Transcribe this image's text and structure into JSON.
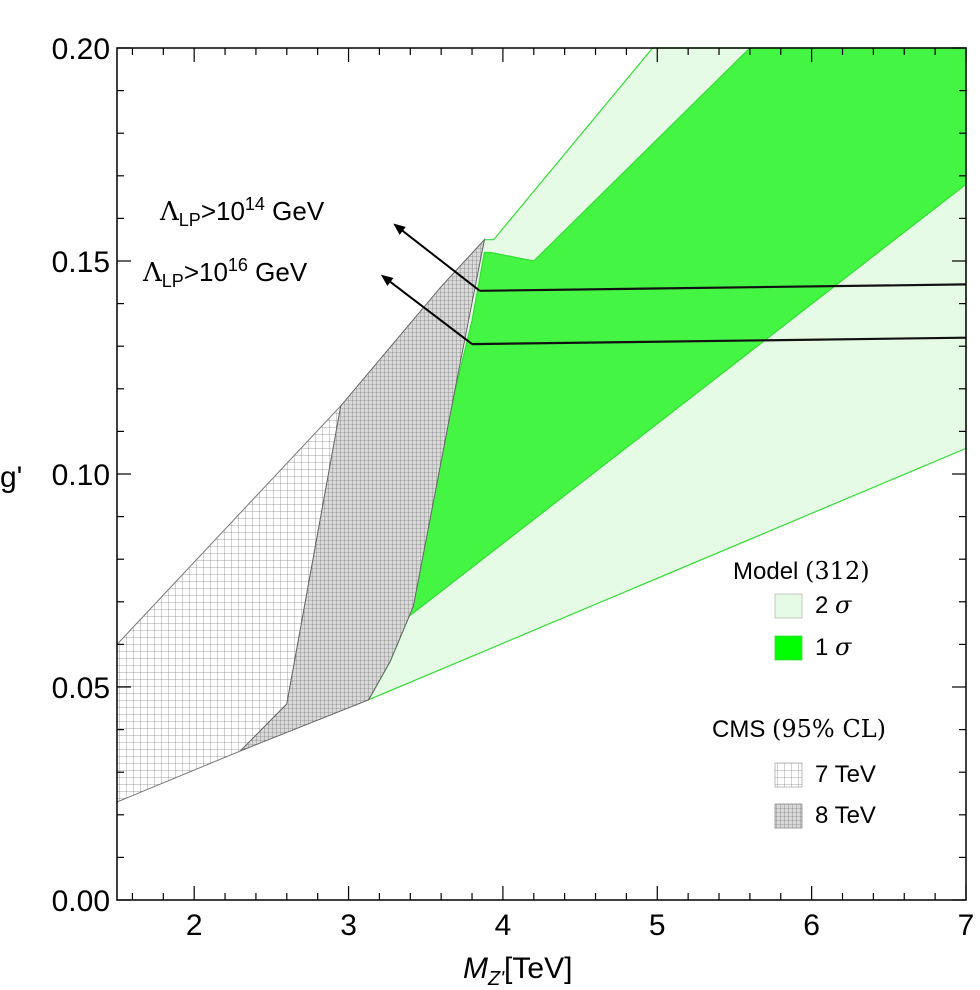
{
  "chart_data": {
    "type": "area",
    "x_label": "M",
    "x_label_sub": "Z'",
    "x_label_unit": "[TeV]",
    "y_label": "g'",
    "x_range": [
      1.5,
      7
    ],
    "y_range": [
      0,
      0.2
    ],
    "x_ticks": [
      2,
      3,
      4,
      5,
      6,
      7
    ],
    "y_ticks": [
      0.0,
      0.05,
      0.1,
      0.15,
      0.2
    ],
    "x_tick_labels": [
      "2",
      "3",
      "4",
      "5",
      "6",
      "7"
    ],
    "y_tick_labels": [
      "0.00",
      "0.05",
      "0.10",
      "0.15",
      "0.20"
    ],
    "regions": [
      {
        "name": "Model 2σ",
        "color": "#e6fbe6",
        "edge": "#33dd33",
        "polygon": [
          [
            3.13,
            0.047
          ],
          [
            3.27,
            0.056
          ],
          [
            3.42,
            0.069
          ],
          [
            3.6,
            0.106
          ],
          [
            3.88,
            0.155
          ],
          [
            3.94,
            0.155
          ],
          [
            4.97,
            0.2
          ],
          [
            7,
            0.2
          ],
          [
            7,
            0.106
          ]
        ]
      },
      {
        "name": "Model 1σ",
        "color": "#44f544",
        "edge": "#33dd33",
        "polygon": [
          [
            3.37,
            0.066
          ],
          [
            3.45,
            0.084
          ],
          [
            3.53,
            0.096
          ],
          [
            3.68,
            0.118
          ],
          [
            3.8,
            0.136
          ],
          [
            3.88,
            0.152
          ],
          [
            3.92,
            0.152
          ],
          [
            4.2,
            0.15
          ],
          [
            5.6,
            0.2
          ],
          [
            7,
            0.2
          ],
          [
            7,
            0.168
          ]
        ]
      },
      {
        "name": "CMS 7 TeV",
        "color": "#ffffff",
        "pattern": "grid-open",
        "polygon": [
          [
            1.5,
            0.023
          ],
          [
            2.3,
            0.035
          ],
          [
            2.6,
            0.046
          ],
          [
            2.95,
            0.116
          ],
          [
            1.5,
            0.06
          ]
        ]
      },
      {
        "name": "CMS 8 TeV",
        "color": "#cccccc",
        "pattern": "grid-dense",
        "polygon": [
          [
            2.3,
            0.035
          ],
          [
            3.13,
            0.047
          ],
          [
            3.27,
            0.056
          ],
          [
            3.42,
            0.069
          ],
          [
            3.68,
            0.118
          ],
          [
            3.88,
            0.155
          ],
          [
            3.6,
            0.144
          ],
          [
            2.95,
            0.116
          ],
          [
            2.6,
            0.046
          ]
        ]
      }
    ],
    "lines": [
      {
        "name": "Lambda_LP > 10^14 GeV",
        "x": [
          3.85,
          7
        ],
        "y": [
          0.143,
          0.1445
        ]
      },
      {
        "name": "Lambda_LP > 10^16 GeV",
        "x": [
          3.8,
          7
        ],
        "y": [
          0.1305,
          0.132
        ]
      }
    ],
    "arrows": [
      {
        "from": [
          3.85,
          0.143
        ],
        "to": [
          3.3,
          0.1585
        ]
      },
      {
        "from": [
          3.8,
          0.1305
        ],
        "to": [
          3.22,
          0.1465
        ]
      }
    ],
    "annotations": {
      "lambda14": {
        "symbol": "Λ",
        "sub": "LP",
        "rel": ">10",
        "exp": "14",
        "unit": " GeV"
      },
      "lambda16": {
        "symbol": "Λ",
        "sub": "LP",
        "rel": ">10",
        "exp": "16",
        "unit": " GeV"
      }
    },
    "legend": {
      "position": "bottom-right",
      "model_title": "Model ",
      "model_title_paren": "(312)",
      "sigma2_label": "2 ",
      "sigma1_label": "1 ",
      "sigma_symbol": "σ",
      "cms_title": "CMS ",
      "cms_title_paren": "(95% CL)",
      "tev7_label": "7 TeV",
      "tev8_label": "8 TeV"
    },
    "colors": {
      "band2": "#e6fbe6",
      "band1": "#44f544",
      "edge": "#33dd33",
      "grey": "#cccccc"
    }
  }
}
